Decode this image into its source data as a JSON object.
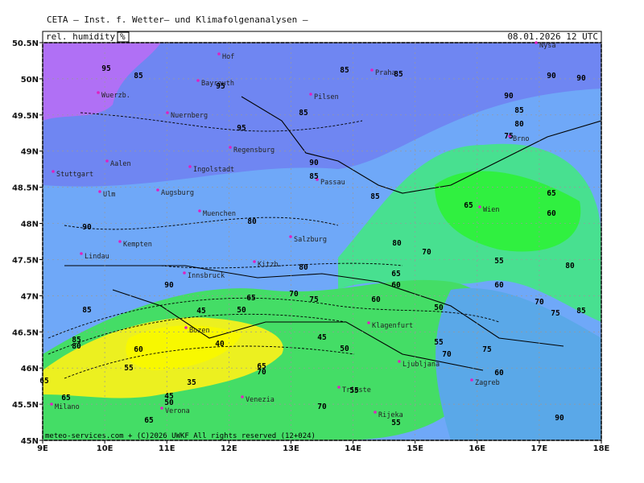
{
  "header": {
    "title": "CETA — Inst. f. Wetter— und Klimafolgenanalysen —"
  },
  "map": {
    "variable": "rel. humidity",
    "unit": "%",
    "valid": "08.01.2026 12 UTC",
    "lon_range": [
      9,
      18
    ],
    "lat_range": [
      45,
      50.5
    ],
    "lon_ticks": [
      {
        "value": 9,
        "label": "9E"
      },
      {
        "value": 10,
        "label": "10E"
      },
      {
        "value": 11,
        "label": "11E"
      },
      {
        "value": 12,
        "label": "12E"
      },
      {
        "value": 13,
        "label": "13E"
      },
      {
        "value": 14,
        "label": "14E"
      },
      {
        "value": 15,
        "label": "15E"
      },
      {
        "value": 16,
        "label": "16E"
      },
      {
        "value": 17,
        "label": "17E"
      },
      {
        "value": 18,
        "label": "18E"
      }
    ],
    "lat_ticks": [
      {
        "value": 45,
        "label": "45N"
      },
      {
        "value": 45.5,
        "label": "45.5N"
      },
      {
        "value": 46,
        "label": "46N"
      },
      {
        "value": 46.5,
        "label": "46.5N"
      },
      {
        "value": 47,
        "label": "47N"
      },
      {
        "value": 47.5,
        "label": "47.5N"
      },
      {
        "value": 48,
        "label": "48N"
      },
      {
        "value": 48.5,
        "label": "48.5N"
      },
      {
        "value": 49,
        "label": "49N"
      },
      {
        "value": 49.5,
        "label": "49.5N"
      },
      {
        "value": 50,
        "label": "50N"
      },
      {
        "value": 50.5,
        "label": "50.5N"
      }
    ],
    "cities": [
      "Hof",
      "Bayreuth",
      "Wuerzb.",
      "Nuernberg",
      "Praha",
      "Pilsen",
      "Regensburg",
      "Ingolstadt",
      "Aalen",
      "Stuttgart",
      "Ulm",
      "Augsburg",
      "Passau",
      "Muenchen",
      "Kempten",
      "Lindau",
      "Salzburg",
      "Innsbruck",
      "Kitzb.",
      "Wien",
      "Brno",
      "Nysa",
      "Bozen",
      "Klagenfurt",
      "Ljubljana",
      "Zagreb",
      "Trieste",
      "Rijeka",
      "Venezia",
      "Verona",
      "Milano"
    ],
    "contour_labels": [
      95,
      85,
      95,
      95,
      85,
      85,
      85,
      90,
      85,
      80,
      75,
      90,
      90,
      90,
      85,
      85,
      65,
      65,
      60,
      80,
      90,
      80,
      70,
      55,
      60,
      80,
      80,
      65,
      60,
      90,
      65,
      70,
      75,
      60,
      50,
      70,
      75,
      85,
      45,
      50,
      85,
      45,
      50,
      40,
      85,
      80,
      60,
      55,
      35,
      65,
      65,
      45,
      50,
      65,
      70,
      55,
      55,
      55,
      70,
      60,
      75,
      90,
      65,
      70
    ]
  },
  "footer": "meteo-services.com + (C)2026 UWKF All rights reserved (12+024)"
}
